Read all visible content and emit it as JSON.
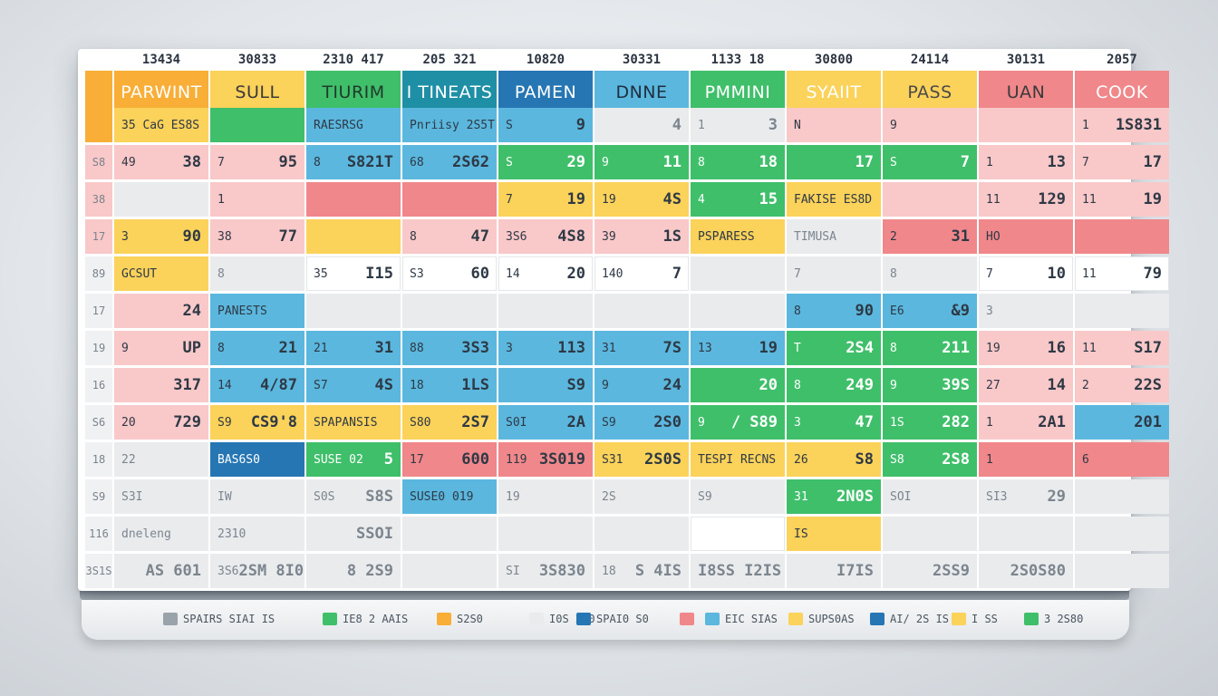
{
  "colors": {
    "orange": "#f8ae37",
    "yellow": "#fbd25a",
    "green": "#3fbf6a",
    "teal": "#1f8fa6",
    "blue": "#2676b3",
    "lightblue": "#5bb7de",
    "pink": "#f0878a",
    "lightpink": "#f9c8c9",
    "grey": "#e9ebed"
  },
  "top_numbers": [
    "13434",
    "30833",
    "2310 417",
    "205 321",
    "10820",
    "30331",
    "1133 18",
    "30800",
    "24114",
    "30131",
    "2057"
  ],
  "headers": [
    {
      "label": "PARWINT",
      "color": "#f8ae37",
      "text": "#ffffff"
    },
    {
      "label": "SULL",
      "color": "#fbd25a",
      "text": "#3a3a3a"
    },
    {
      "label": "TIURIM",
      "color": "#3fbf6a",
      "text": "#1f3a2a"
    },
    {
      "label": "I TINEATS",
      "color": "#1f8fa6",
      "text": "#ffffff"
    },
    {
      "label": "PAMEN",
      "color": "#2676b3",
      "text": "#ffffff"
    },
    {
      "label": "DNNE",
      "color": "#5bb7de",
      "text": "#1f2f40"
    },
    {
      "label": "PMMINI",
      "color": "#3fbf6a",
      "text": "#ffffff"
    },
    {
      "label": "SYAIIT",
      "color": "#fbd25a",
      "text": "#ffffff"
    },
    {
      "label": "PASS",
      "color": "#fbd25a",
      "text": "#4a4a4a"
    },
    {
      "label": "UAN",
      "color": "#f0878a",
      "text": "#3a3a3a"
    },
    {
      "label": "COOK",
      "color": "#f0878a",
      "text": "#ffffff"
    }
  ],
  "rows": [
    {
      "side": "",
      "cells": [
        {
          "a": "35 CaG ES8S",
          "b": "",
          "c": "yellow"
        },
        {
          "a": "",
          "b": "",
          "c": "green"
        },
        {
          "a": "RAESRSG",
          "b": "",
          "c": "lightblue"
        },
        {
          "a": "Pnriisy 2S5T",
          "b": "",
          "c": "lightblue"
        },
        {
          "a": "S",
          "b": "9",
          "c": "lightblue"
        },
        {
          "a": "",
          "b": "4",
          "c": "grey"
        },
        {
          "a": "1",
          "b": "3",
          "c": "grey"
        },
        {
          "a": "N",
          "b": "",
          "c": "lightpink"
        },
        {
          "a": "9",
          "b": "",
          "c": "lightpink"
        },
        {
          "a": "",
          "b": "",
          "c": "lightpink"
        },
        {
          "a": "1",
          "b": "1S831",
          "c": "lightpink"
        }
      ]
    },
    {
      "side": "S8",
      "cells": [
        {
          "a": "49",
          "b": "38",
          "c": "lightpink"
        },
        {
          "a": "7",
          "b": "95",
          "c": "lightpink"
        },
        {
          "a": "8",
          "b": "S821T",
          "c": "lightblue"
        },
        {
          "a": "68",
          "b": "2S62",
          "c": "lightblue"
        },
        {
          "a": "S",
          "b": "29",
          "c": "green"
        },
        {
          "a": "9",
          "b": "11",
          "c": "green"
        },
        {
          "a": "8",
          "b": "18",
          "c": "green"
        },
        {
          "a": "",
          "b": "17",
          "c": "green"
        },
        {
          "a": "S",
          "b": "7",
          "c": "green"
        },
        {
          "a": "1",
          "b": "13",
          "c": "lightpink"
        },
        {
          "a": "7",
          "b": "17",
          "c": "lightpink"
        }
      ]
    },
    {
      "side": "38",
      "cells": [
        {
          "a": "",
          "b": "",
          "c": "grey"
        },
        {
          "a": "1",
          "b": "",
          "c": "lightpink"
        },
        {
          "a": "",
          "b": "",
          "c": "pink"
        },
        {
          "a": "",
          "b": "",
          "c": "pink"
        },
        {
          "a": "7",
          "b": "19",
          "c": "yellow"
        },
        {
          "a": "19",
          "b": "4S",
          "c": "yellow"
        },
        {
          "a": "4",
          "b": "15",
          "c": "green"
        },
        {
          "a": "FAKISE ES8D",
          "b": "",
          "c": "yellow"
        },
        {
          "a": "",
          "b": "",
          "c": "lightpink"
        },
        {
          "a": "11",
          "b": "129",
          "c": "lightpink"
        },
        {
          "a": "11",
          "b": "19",
          "c": "lightpink"
        }
      ]
    },
    {
      "side": "17",
      "cells": [
        {
          "a": "3",
          "b": "90",
          "c": "yellow"
        },
        {
          "a": "38",
          "b": "77",
          "c": "lightpink"
        },
        {
          "a": "",
          "b": "",
          "c": "yellow"
        },
        {
          "a": "8",
          "b": "47",
          "c": "lightpink"
        },
        {
          "a": "3S6",
          "b": "4S8",
          "c": "lightpink"
        },
        {
          "a": "39",
          "b": "1S",
          "c": "lightpink"
        },
        {
          "a": "PSPARESS",
          "b": "",
          "c": "yellow"
        },
        {
          "a": "TIMUSA",
          "b": "",
          "c": "grey"
        },
        {
          "a": "2",
          "b": "31",
          "c": "pink"
        },
        {
          "a": "HO",
          "b": "",
          "c": "pink"
        },
        {
          "a": "",
          "b": "",
          "c": "pink"
        }
      ]
    },
    {
      "side": "89",
      "cells": [
        {
          "a": "GCSUT",
          "b": "",
          "c": "yellow"
        },
        {
          "a": "8",
          "b": "",
          "c": "grey"
        },
        {
          "a": "35",
          "b": "I15",
          "c": "white"
        },
        {
          "a": "S3",
          "b": "60",
          "c": "white"
        },
        {
          "a": "14",
          "b": "20",
          "c": "white"
        },
        {
          "a": "140",
          "b": "7",
          "c": "white"
        },
        {
          "a": "",
          "b": "",
          "c": "grey"
        },
        {
          "a": "7",
          "b": "",
          "c": "grey"
        },
        {
          "a": "8",
          "b": "",
          "c": "grey"
        },
        {
          "a": "7",
          "b": "10",
          "c": "white"
        },
        {
          "a": "11",
          "b": "79",
          "c": "white"
        }
      ]
    },
    {
      "side": "17",
      "cells": [
        {
          "a": "",
          "b": "24",
          "c": "lightpink"
        },
        {
          "a": "PANESTS",
          "b": "",
          "c": "lightblue"
        },
        {
          "a": "",
          "b": "",
          "c": "grey"
        },
        {
          "a": "",
          "b": "",
          "c": "grey"
        },
        {
          "a": "",
          "b": "",
          "c": "grey"
        },
        {
          "a": "",
          "b": "",
          "c": "grey"
        },
        {
          "a": "",
          "b": "",
          "c": "grey"
        },
        {
          "a": "8",
          "b": "90",
          "c": "lightblue"
        },
        {
          "a": "E6",
          "b": "&9",
          "c": "lightblue"
        },
        {
          "a": "3",
          "b": "",
          "c": "grey"
        },
        {
          "a": "",
          "b": "",
          "c": "grey"
        }
      ]
    },
    {
      "side": "19",
      "cells": [
        {
          "a": "9",
          "b": "UP",
          "c": "lightpink"
        },
        {
          "a": "8",
          "b": "21",
          "c": "lightblue"
        },
        {
          "a": "21",
          "b": "31",
          "c": "lightblue"
        },
        {
          "a": "88",
          "b": "3S3",
          "c": "lightblue"
        },
        {
          "a": "3",
          "b": "113",
          "c": "lightblue"
        },
        {
          "a": "31",
          "b": "7S",
          "c": "lightblue"
        },
        {
          "a": "13",
          "b": "19",
          "c": "lightblue"
        },
        {
          "a": "T",
          "b": "2S4",
          "c": "green"
        },
        {
          "a": "8",
          "b": "211",
          "c": "green"
        },
        {
          "a": "19",
          "b": "16",
          "c": "lightpink"
        },
        {
          "a": "11",
          "b": "S17",
          "c": "lightpink"
        }
      ]
    },
    {
      "side": "16",
      "cells": [
        {
          "a": "",
          "b": "317",
          "c": "lightpink"
        },
        {
          "a": "14",
          "b": "4/87",
          "c": "lightblue"
        },
        {
          "a": "S7",
          "b": "4S",
          "c": "lightblue"
        },
        {
          "a": "18",
          "b": "1LS",
          "c": "lightblue"
        },
        {
          "a": "",
          "b": "S9",
          "c": "lightblue"
        },
        {
          "a": "9",
          "b": "24",
          "c": "lightblue"
        },
        {
          "a": "",
          "b": "20",
          "c": "green"
        },
        {
          "a": "8",
          "b": "249",
          "c": "green"
        },
        {
          "a": "9",
          "b": "39S",
          "c": "green"
        },
        {
          "a": "27",
          "b": "14",
          "c": "lightpink"
        },
        {
          "a": "2",
          "b": "22S",
          "c": "lightpink"
        }
      ]
    },
    {
      "side": "S6",
      "cells": [
        {
          "a": "20",
          "b": "729",
          "c": "lightpink"
        },
        {
          "a": "S9",
          "b": "CS9'8",
          "c": "yellow"
        },
        {
          "a": "SPAPANSIS",
          "b": "",
          "c": "yellow"
        },
        {
          "a": "S80",
          "b": "2S7",
          "c": "yellow"
        },
        {
          "a": "S0I",
          "b": "2A",
          "c": "lightblue"
        },
        {
          "a": "S9",
          "b": "2S0",
          "c": "lightblue"
        },
        {
          "a": "9",
          "b": "/ S89",
          "c": "green"
        },
        {
          "a": "3",
          "b": "47",
          "c": "green"
        },
        {
          "a": "1S",
          "b": "282",
          "c": "green"
        },
        {
          "a": "1",
          "b": "2A1",
          "c": "lightpink"
        },
        {
          "a": "",
          "b": "201",
          "c": "lightblue"
        }
      ]
    },
    {
      "side": "18",
      "cells": [
        {
          "a": "22",
          "b": "",
          "c": "grey"
        },
        {
          "a": "BAS6S0",
          "b": "",
          "c": "blue"
        },
        {
          "a": "SUSE 02",
          "b": "5",
          "c": "green"
        },
        {
          "a": "17",
          "b": "600",
          "c": "pink"
        },
        {
          "a": "119",
          "b": "3S019",
          "c": "pink"
        },
        {
          "a": "S31",
          "b": "2S0S",
          "c": "yellow"
        },
        {
          "a": "TESPI RECNS",
          "b": "",
          "c": "yellow"
        },
        {
          "a": "26",
          "b": "S8",
          "c": "yellow"
        },
        {
          "a": "S8",
          "b": "2S8",
          "c": "green"
        },
        {
          "a": "1",
          "b": "",
          "c": "pink"
        },
        {
          "a": "6",
          "b": "",
          "c": "pink"
        }
      ]
    },
    {
      "side": "S9",
      "cells": [
        {
          "a": "S3I",
          "b": "",
          "c": "grey"
        },
        {
          "a": "IW",
          "b": "",
          "c": "grey"
        },
        {
          "a": "S0S",
          "b": "S8S",
          "c": "grey"
        },
        {
          "a": "SUSE0 019",
          "b": "",
          "c": "lightblue"
        },
        {
          "a": "19",
          "b": "",
          "c": "grey"
        },
        {
          "a": "2S",
          "b": "",
          "c": "grey"
        },
        {
          "a": "S9",
          "b": "",
          "c": "grey"
        },
        {
          "a": "31",
          "b": "2N0S",
          "c": "green"
        },
        {
          "a": "SOI",
          "b": "",
          "c": "grey"
        },
        {
          "a": "SI3",
          "b": "29",
          "c": "grey"
        },
        {
          "a": "",
          "b": "",
          "c": "grey"
        }
      ]
    },
    {
      "side": "116",
      "cells": [
        {
          "a": "dneleng",
          "b": "",
          "c": "grey"
        },
        {
          "a": "2310",
          "b": "",
          "c": "grey"
        },
        {
          "a": "",
          "b": "SSOI",
          "c": "grey"
        },
        {
          "a": "",
          "b": "",
          "c": "grey"
        },
        {
          "a": "",
          "b": "",
          "c": "grey"
        },
        {
          "a": "",
          "b": "",
          "c": "grey"
        },
        {
          "a": "",
          "b": "",
          "c": "white"
        },
        {
          "a": "IS",
          "b": "",
          "c": "yellow"
        },
        {
          "a": "",
          "b": "",
          "c": "grey"
        },
        {
          "a": "",
          "b": "",
          "c": "grey"
        },
        {
          "a": "",
          "b": "",
          "c": "grey"
        }
      ]
    },
    {
      "side": "3S1S",
      "cells": [
        {
          "a": "",
          "b": "AS 601",
          "c": "grey"
        },
        {
          "a": "3S6",
          "b": "2SM 8I0S",
          "c": "grey"
        },
        {
          "a": "",
          "b": "8 2S9",
          "c": "grey"
        },
        {
          "a": "",
          "b": "",
          "c": "grey"
        },
        {
          "a": "SI",
          "b": "3S830",
          "c": "grey"
        },
        {
          "a": "18",
          "b": "S 4IS",
          "c": "grey"
        },
        {
          "a": "",
          "b": "I8SS I2IS",
          "c": "grey"
        },
        {
          "a": "",
          "b": "I7IS",
          "c": "grey"
        },
        {
          "a": "",
          "b": "2SS9",
          "c": "grey"
        },
        {
          "a": "",
          "b": "2S0S80",
          "c": "grey"
        },
        {
          "a": "",
          "b": "",
          "c": "grey"
        }
      ]
    }
  ],
  "legend": [
    {
      "label": "SPAIRS SIAI IS",
      "color": "#9aa2aa"
    },
    {
      "label": "IE8 2 AAIS",
      "color": "#3fbf6a"
    },
    {
      "label": "S2S0",
      "color": "#f8ae37"
    },
    {
      "label": "I0S 2I0",
      "color": "#e9ebed"
    },
    {
      "label": "SPAI0 S0",
      "color": "#2676b3"
    },
    {
      "label": "",
      "color": "#f0878a"
    },
    {
      "label": "EIC SIAS",
      "color": "#5bb7de"
    },
    {
      "label": "SUPS0AS",
      "color": "#fbd25a"
    },
    {
      "label": "AI/ 2S IS",
      "color": "#2676b3"
    },
    {
      "label": "I SS",
      "color": "#fbd25a"
    },
    {
      "label": "3 2S80",
      "color": "#3fbf6a"
    }
  ]
}
